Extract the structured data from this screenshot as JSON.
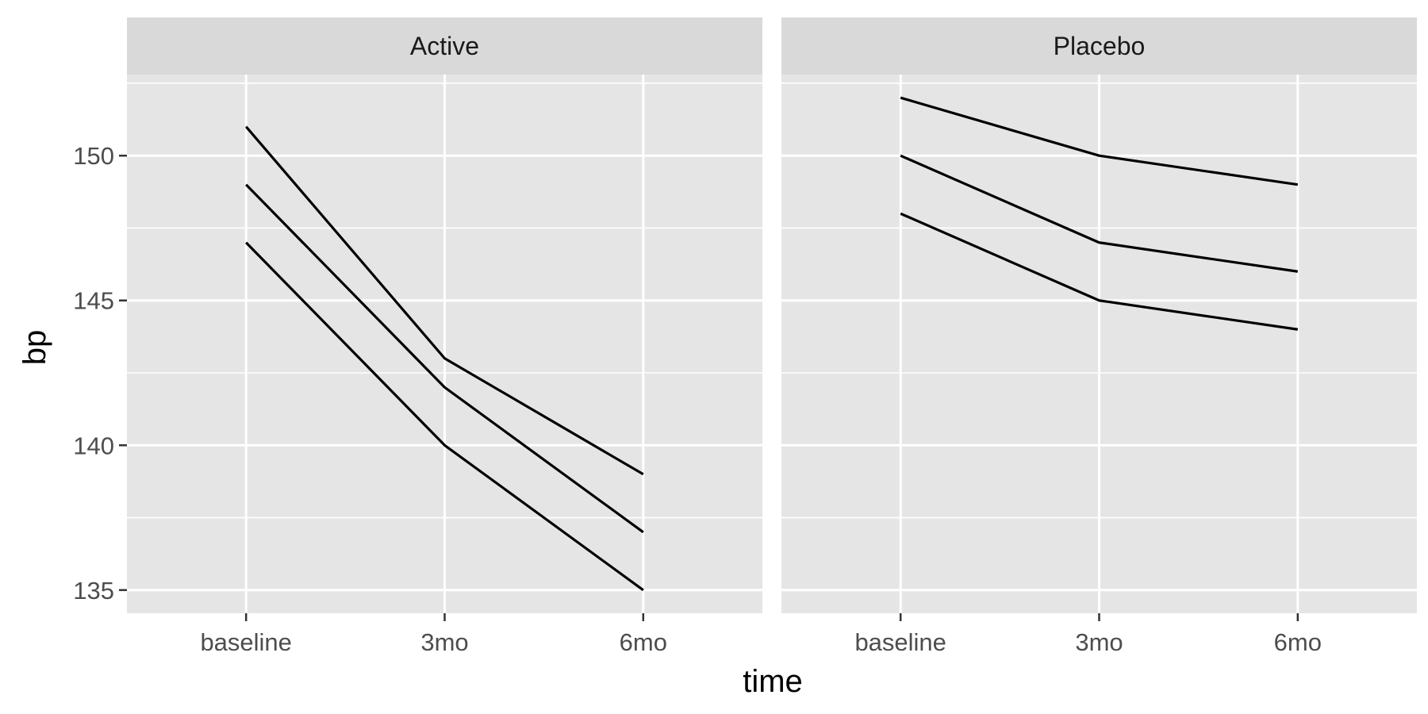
{
  "chart_data": {
    "type": "line",
    "facet_by": "treatment",
    "x": [
      "baseline",
      "3mo",
      "6mo"
    ],
    "xlabel": "time",
    "ylabel": "bp",
    "ylim": [
      134.2,
      152.8
    ],
    "yticks": [
      135,
      140,
      145,
      150
    ],
    "grid": true,
    "panels": [
      {
        "title": "Active",
        "series": [
          {
            "values": [
              151,
              143,
              139
            ]
          },
          {
            "values": [
              149,
              142,
              137
            ]
          },
          {
            "values": [
              147,
              140,
              135
            ]
          }
        ]
      },
      {
        "title": "Placebo",
        "series": [
          {
            "values": [
              152,
              150,
              149
            ]
          },
          {
            "values": [
              150,
              147,
              146
            ]
          },
          {
            "values": [
              148,
              145,
              144
            ]
          }
        ]
      }
    ]
  }
}
